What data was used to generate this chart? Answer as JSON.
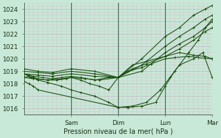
{
  "xlabel": "Pression niveau de la mer( hPa )",
  "bg_color": "#c8e8d8",
  "grid_color_minor": "#d4b8c8",
  "grid_color_major": "#c0a8b8",
  "line_color": "#1a5010",
  "vline_color": "#506858",
  "ylim": [
    1015.5,
    1024.5
  ],
  "xlim": [
    0,
    4.0
  ],
  "yticks": [
    1016,
    1017,
    1018,
    1019,
    1020,
    1021,
    1022,
    1023,
    1024
  ],
  "xtick_positions": [
    1.0,
    2.0,
    3.0,
    4.0
  ],
  "xticklabels": [
    "Sam",
    "Dim",
    "Lun",
    "Mar"
  ],
  "vlines": [
    1.0,
    2.0,
    3.0
  ],
  "lines": [
    {
      "x": [
        0.0,
        0.1,
        0.2,
        0.3,
        2.0,
        2.2,
        2.5,
        2.8,
        3.0,
        3.2,
        3.5,
        3.7,
        3.85,
        4.0
      ],
      "y": [
        1018.2,
        1018.0,
        1017.8,
        1017.5,
        1016.1,
        1016.1,
        1016.2,
        1016.5,
        1017.8,
        1019.0,
        1020.5,
        1021.5,
        1022.5,
        1023.2
      ]
    },
    {
      "x": [
        0.0,
        0.15,
        0.3,
        0.5,
        0.8,
        1.0,
        1.2,
        1.5,
        1.8,
        2.0,
        2.3,
        2.6,
        2.9,
        3.1,
        3.3,
        3.6,
        3.8,
        4.0
      ],
      "y": [
        1018.8,
        1018.5,
        1018.3,
        1018.1,
        1017.8,
        1017.5,
        1017.3,
        1017.0,
        1016.5,
        1016.1,
        1016.2,
        1016.5,
        1017.5,
        1018.5,
        1019.5,
        1020.0,
        1020.5,
        1018.5
      ]
    },
    {
      "x": [
        0.0,
        0.1,
        0.2,
        0.3,
        0.5,
        0.7,
        0.9,
        1.0,
        1.2,
        1.4,
        1.6,
        1.8,
        2.0,
        2.2,
        2.5,
        2.7,
        3.0,
        3.2,
        3.5,
        3.7,
        4.0
      ],
      "y": [
        1018.5,
        1018.6,
        1018.5,
        1018.4,
        1018.3,
        1018.3,
        1018.4,
        1018.5,
        1018.3,
        1018.0,
        1017.8,
        1017.5,
        1018.5,
        1019.0,
        1019.3,
        1019.6,
        1020.0,
        1020.1,
        1020.2,
        1020.1,
        1020.0
      ]
    },
    {
      "x": [
        0.0,
        0.1,
        0.2,
        0.4,
        0.6,
        0.8,
        1.0,
        1.2,
        1.5,
        1.8,
        2.0,
        2.3,
        2.6,
        3.0,
        3.3,
        3.6,
        3.85,
        4.0
      ],
      "y": [
        1018.8,
        1018.7,
        1018.6,
        1018.5,
        1018.4,
        1018.5,
        1018.6,
        1018.5,
        1018.3,
        1018.5,
        1018.5,
        1019.5,
        1019.8,
        1020.2,
        1020.5,
        1020.3,
        1020.2,
        1020.0
      ]
    },
    {
      "x": [
        0.0,
        0.2,
        0.5,
        0.8,
        1.0,
        1.3,
        1.6,
        2.0,
        2.3,
        2.6,
        3.0,
        3.3,
        3.6,
        3.85,
        4.0
      ],
      "y": [
        1018.5,
        1018.4,
        1018.3,
        1018.4,
        1018.5,
        1018.4,
        1018.3,
        1018.5,
        1019.2,
        1019.6,
        1020.2,
        1020.8,
        1021.5,
        1022.2,
        1022.5
      ]
    },
    {
      "x": [
        0.0,
        0.3,
        0.6,
        1.0,
        1.5,
        2.0,
        2.5,
        3.0,
        3.3,
        3.6,
        3.85,
        4.0
      ],
      "y": [
        1018.8,
        1018.7,
        1018.6,
        1018.8,
        1018.6,
        1018.5,
        1019.0,
        1020.5,
        1021.2,
        1021.8,
        1022.5,
        1023.0
      ]
    },
    {
      "x": [
        0.0,
        0.3,
        0.6,
        1.0,
        1.5,
        2.0,
        2.5,
        3.0,
        3.3,
        3.6,
        3.85,
        4.0
      ],
      "y": [
        1019.0,
        1018.9,
        1018.8,
        1019.0,
        1018.8,
        1018.5,
        1019.5,
        1021.0,
        1021.8,
        1022.5,
        1023.2,
        1023.5
      ]
    },
    {
      "x": [
        0.0,
        0.3,
        0.6,
        1.0,
        1.5,
        2.0,
        2.5,
        3.0,
        3.3,
        3.6,
        3.85,
        4.0
      ],
      "y": [
        1019.2,
        1019.0,
        1018.9,
        1019.2,
        1019.0,
        1018.5,
        1020.0,
        1021.8,
        1022.5,
        1023.5,
        1024.0,
        1024.3
      ]
    }
  ]
}
